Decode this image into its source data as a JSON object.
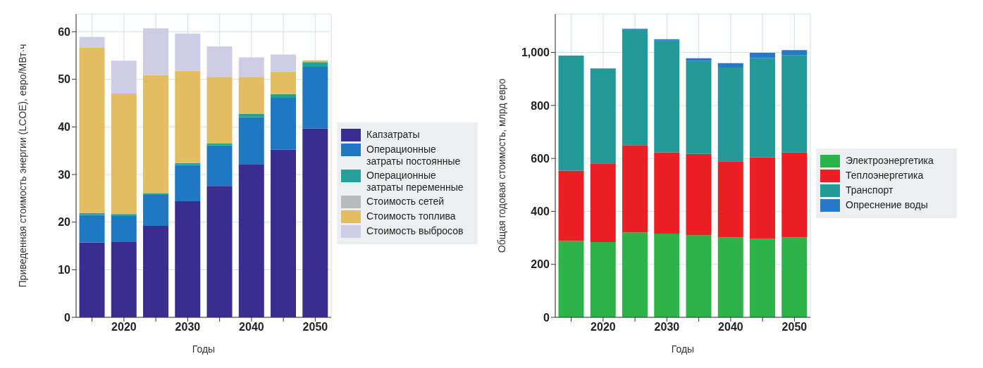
{
  "chart_data": [
    {
      "type": "bar",
      "stacked": true,
      "xlabel": "Годы",
      "ylabel": "Приведенная стоимость энергии (LCOE), евро/МВт·ч",
      "categories": [
        null,
        "2020",
        null,
        "2030",
        null,
        "2040",
        null,
        "2050"
      ],
      "ylim": [
        0,
        63.7
      ],
      "yticks": [
        0,
        10,
        20,
        30,
        40,
        50,
        60
      ],
      "grid": true,
      "legend": "right",
      "series": [
        {
          "name": "Капзатраты",
          "color": "#3a2d8f",
          "values": [
            15.7,
            15.8,
            19.2,
            24.4,
            27.6,
            32.2,
            35.2,
            39.7
          ]
        },
        {
          "name": "Операционные затраты постоянные",
          "color": "#1f78c1",
          "values": [
            5.8,
            5.5,
            6.5,
            7.6,
            8.5,
            9.8,
            10.9,
            12.9
          ]
        },
        {
          "name": "Операционные затраты переменные",
          "color": "#26a09a",
          "values": [
            0.4,
            0.4,
            0.4,
            0.4,
            0.4,
            0.7,
            0.8,
            1.0
          ]
        },
        {
          "name": "Стоимость сетей",
          "color": "#b8b9bd",
          "values": [
            0,
            0,
            0,
            0,
            0,
            0,
            0,
            0
          ]
        },
        {
          "name": "Стоимость топлива",
          "color": "#e2bd62",
          "values": [
            34.7,
            25.3,
            24.8,
            19.4,
            14.0,
            7.8,
            4.7,
            0.4
          ]
        },
        {
          "name": "Стоимость выбросов",
          "color": "#cfcce6",
          "values": [
            2.3,
            6.9,
            9.8,
            7.8,
            6.4,
            4.1,
            3.6,
            0
          ]
        }
      ]
    },
    {
      "type": "bar",
      "stacked": true,
      "xlabel": "Годы",
      "ylabel": "Общая годовая стоимость, млрд евро",
      "categories": [
        null,
        "2020",
        null,
        "2030",
        null,
        "2040",
        null,
        "2050"
      ],
      "ylim": [
        0,
        1145
      ],
      "yticks": [
        0,
        200,
        400,
        600,
        800,
        {
          "value": 1000,
          "label": "1,000"
        }
      ],
      "grid": true,
      "legend": "right",
      "series": [
        {
          "name": "Электроэнергетика",
          "color": "#2db34a",
          "values": [
            288,
            284,
            321,
            316,
            310,
            302,
            297,
            302
          ]
        },
        {
          "name": "Теплоэнергетика",
          "color": "#ec1f24",
          "values": [
            266,
            297,
            329,
            307,
            307,
            287,
            307,
            320
          ]
        },
        {
          "name": "Транспорт",
          "color": "#24999a",
          "values": [
            434,
            359,
            437,
            422,
            351,
            354,
            375,
            368
          ]
        },
        {
          "name": "Опреснение воды",
          "color": "#2779c7",
          "values": [
            0,
            0,
            3,
            5,
            10,
            17,
            20,
            19
          ]
        }
      ]
    }
  ]
}
